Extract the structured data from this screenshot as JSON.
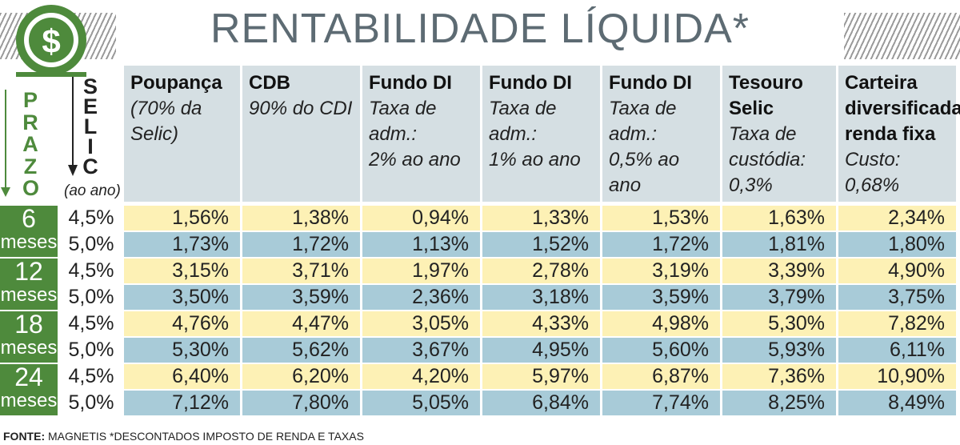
{
  "title": "RENTABILIDADE LÍQUIDA*",
  "labels": {
    "prazo": "PRAZO",
    "selic": "SELIC",
    "aoano": "(ao ano)"
  },
  "source_label": "FONTE:",
  "source_text": " MAGNETIS *DESCONTADOS IMPOSTO DE RENDA E TAXAS",
  "colors": {
    "header_bg": "#d5dfe3",
    "row_yellow": "#fdf1b5",
    "row_blue": "#a8cbd8",
    "green": "#4e8a3c",
    "title": "#5d6b73"
  },
  "chart_data": {
    "type": "table",
    "title": "RENTABILIDADE LÍQUIDA*",
    "columns": [
      {
        "name": "Poupança",
        "sub": "(70% da\nSelic)"
      },
      {
        "name": "CDB",
        "sub": "90% do CDI"
      },
      {
        "name": "Fundo DI",
        "sub": "Taxa de\nadm.:\n2% ao ano"
      },
      {
        "name": "Fundo DI",
        "sub": "Taxa de\nadm.:\n1% ao ano"
      },
      {
        "name": "Fundo DI",
        "sub": "Taxa de\nadm.:\n0,5% ao ano"
      },
      {
        "name": "Tesouro Selic",
        "sub": "Taxa de\ncustódia:\n0,3%\nao ano"
      },
      {
        "name": "Carteira\ndiversificada\nrenda fixa",
        "sub": "Custo: 0,68%\nao ano"
      }
    ],
    "groups": [
      {
        "prazo_num": "6",
        "prazo_unit": "meses",
        "rows": [
          {
            "selic": "4,5%",
            "values": [
              "1,56%",
              "1,38%",
              "0,94%",
              "1,33%",
              "1,53%",
              "1,63%",
              "2,34%"
            ]
          },
          {
            "selic": "5,0%",
            "values": [
              "1,73%",
              "1,72%",
              "1,13%",
              "1,52%",
              "1,72%",
              "1,81%",
              "1,80%"
            ]
          }
        ]
      },
      {
        "prazo_num": "12",
        "prazo_unit": "meses",
        "rows": [
          {
            "selic": "4,5%",
            "values": [
              "3,15%",
              "3,71%",
              "1,97%",
              "2,78%",
              "3,19%",
              "3,39%",
              "4,90%"
            ]
          },
          {
            "selic": "5,0%",
            "values": [
              "3,50%",
              "3,59%",
              "2,36%",
              "3,18%",
              "3,59%",
              "3,79%",
              "3,75%"
            ]
          }
        ]
      },
      {
        "prazo_num": "18",
        "prazo_unit": "meses",
        "rows": [
          {
            "selic": "4,5%",
            "values": [
              "4,76%",
              "4,47%",
              "3,05%",
              "4,33%",
              "4,98%",
              "5,30%",
              "7,82%"
            ]
          },
          {
            "selic": "5,0%",
            "values": [
              "5,30%",
              "5,62%",
              "3,67%",
              "4,95%",
              "5,60%",
              "5,93%",
              "6,11%"
            ]
          }
        ]
      },
      {
        "prazo_num": "24",
        "prazo_unit": "meses",
        "rows": [
          {
            "selic": "4,5%",
            "values": [
              "6,40%",
              "6,20%",
              "4,20%",
              "5,97%",
              "6,87%",
              "7,36%",
              "10,90%"
            ]
          },
          {
            "selic": "5,0%",
            "values": [
              "7,12%",
              "7,80%",
              "5,05%",
              "6,84%",
              "7,74%",
              "8,25%",
              "8,49%"
            ]
          }
        ]
      }
    ]
  }
}
